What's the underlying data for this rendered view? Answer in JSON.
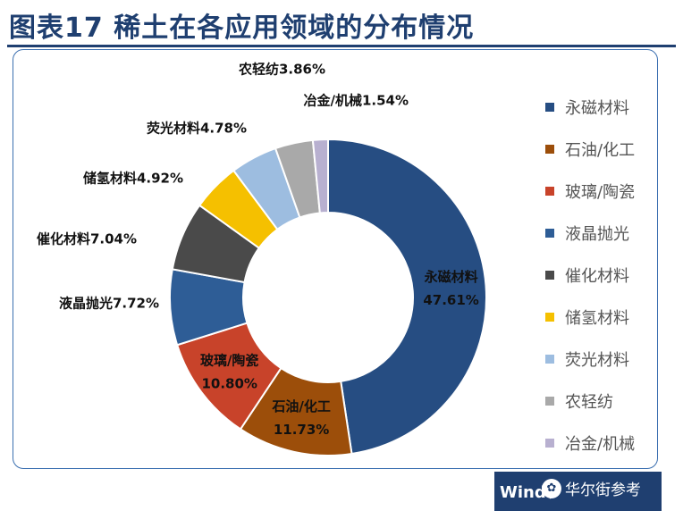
{
  "title": "图表17  稀土在各应用领域的分布情况",
  "chart_data": {
    "type": "pie",
    "style": "donut",
    "title": "图表17  稀土在各应用领域的分布情况",
    "slices": [
      {
        "label": "永磁材料",
        "value": 47.61,
        "value_text": "47.61%",
        "color": "#264d82",
        "label_style": "inside",
        "text_color": "#111111"
      },
      {
        "label": "石油/化工",
        "value": 11.73,
        "value_text": "11.73%",
        "color": "#9c4e0a",
        "label_style": "inside",
        "text_color": "#111111"
      },
      {
        "label": "玻璃/陶瓷",
        "value": 10.8,
        "value_text": "10.80%",
        "color": "#c8432a",
        "label_style": "inside",
        "text_color": "#111111"
      },
      {
        "label": "液晶抛光",
        "value": 7.72,
        "value_text": "7.72%",
        "color": "#2e5d96",
        "label_style": "outside",
        "text_color": "#111111"
      },
      {
        "label": "催化材料",
        "value": 7.04,
        "value_text": "7.04%",
        "color": "#4a4a4a",
        "label_style": "outside",
        "text_color": "#111111"
      },
      {
        "label": "储氢材料",
        "value": 4.92,
        "value_text": "4.92%",
        "color": "#f5c000",
        "label_style": "outside",
        "text_color": "#111111"
      },
      {
        "label": "荧光材料",
        "value": 4.78,
        "value_text": "4.78%",
        "color": "#9dbde0",
        "label_style": "outside",
        "text_color": "#111111"
      },
      {
        "label": "农轻纺",
        "value": 3.86,
        "value_text": "3.86%",
        "color": "#a9a9a9",
        "label_style": "outside",
        "text_color": "#111111"
      },
      {
        "label": "冶金/机械",
        "value": 1.54,
        "value_text": "1.54%",
        "color": "#b8b0d0",
        "label_style": "outside",
        "text_color": "#111111"
      }
    ],
    "legend_placement": "right"
  },
  "source_text": "Wind、",
  "watermark_text": "华尔街参考"
}
